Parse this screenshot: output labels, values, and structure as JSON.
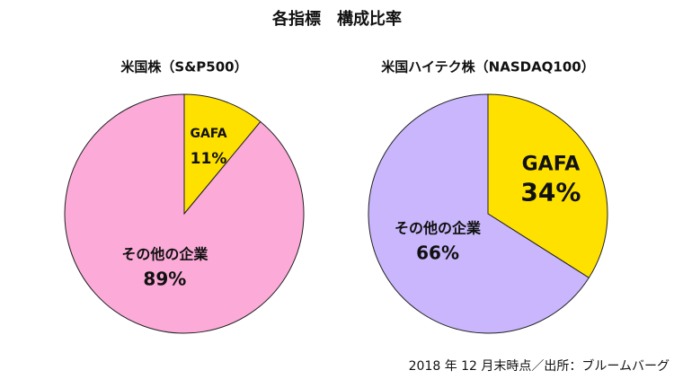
{
  "title": "各指標　構成比率",
  "note": "2018 年 12 月末時点／出所：ブルームバーグ",
  "chart_data": [
    {
      "type": "pie",
      "title": "米国株（S&P500）",
      "categories": [
        "GAFA",
        "その他の企業"
      ],
      "values": [
        11,
        89
      ],
      "value_labels": [
        "11%",
        "89%"
      ],
      "colors": [
        "#ffe100",
        "#fcaad8"
      ]
    },
    {
      "type": "pie",
      "title": "米国ハイテク株（NASDAQ100）",
      "categories": [
        "GAFA",
        "その他の企業"
      ],
      "values": [
        34,
        66
      ],
      "value_labels": [
        "34%",
        "66%"
      ],
      "colors": [
        "#ffe100",
        "#c9b6fc"
      ]
    }
  ]
}
